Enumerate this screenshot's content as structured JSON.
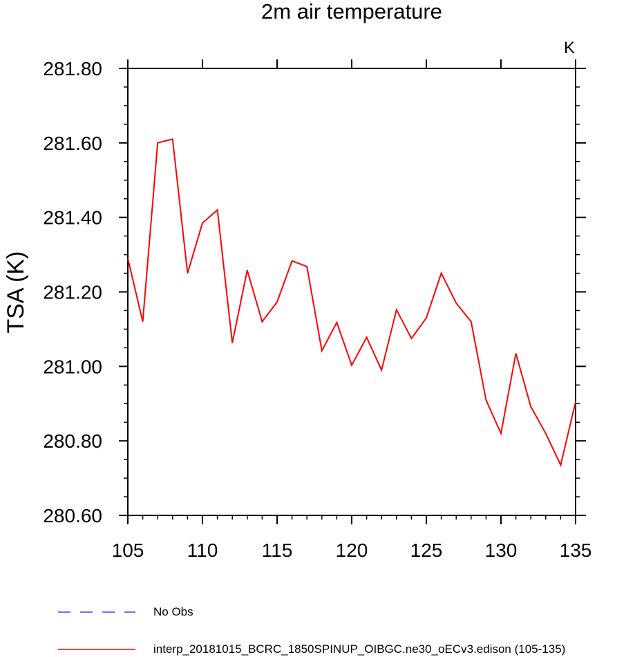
{
  "chart_data": {
    "type": "line",
    "title": "2m air temperature",
    "units_label": "K",
    "xlabel": "",
    "ylabel": "TSA  (K)",
    "xlim": [
      105,
      135
    ],
    "ylim": [
      280.6,
      281.8
    ],
    "x_ticks": [
      105,
      110,
      115,
      120,
      125,
      130,
      135
    ],
    "x_tick_labels": [
      "105",
      "110",
      "115",
      "120",
      "125",
      "130",
      "135"
    ],
    "y_ticks": [
      280.6,
      280.8,
      281.0,
      281.2,
      281.4,
      281.6,
      281.8
    ],
    "y_tick_labels": [
      "280.60",
      "280.80",
      "281.00",
      "281.20",
      "281.40",
      "281.60",
      "281.80"
    ],
    "grid": false,
    "legend_position": "bottom",
    "series": [
      {
        "name": "interp_20181015_BCRC_1850SPINUP_OIBGC.ne30_oECv3.edison (105-135)",
        "color": "#ff0000",
        "line_style": "solid",
        "x": [
          105,
          106,
          107,
          108,
          109,
          110,
          111,
          112,
          113,
          114,
          115,
          116,
          117,
          118,
          119,
          120,
          121,
          122,
          123,
          124,
          125,
          126,
          127,
          128,
          129,
          130,
          131,
          132,
          133,
          134,
          135
        ],
        "values": [
          281.29,
          281.12,
          281.6,
          281.61,
          281.25,
          281.385,
          281.42,
          281.063,
          281.258,
          281.12,
          281.173,
          281.283,
          281.268,
          281.042,
          281.118,
          281.003,
          281.078,
          280.99,
          281.152,
          281.075,
          281.13,
          281.25,
          281.17,
          281.12,
          280.91,
          280.82,
          281.035,
          280.892,
          280.82,
          280.735,
          280.905
        ]
      },
      {
        "name": "No Obs",
        "color": "#4040ff",
        "line_style": "dashed",
        "x": [],
        "values": []
      }
    ]
  }
}
